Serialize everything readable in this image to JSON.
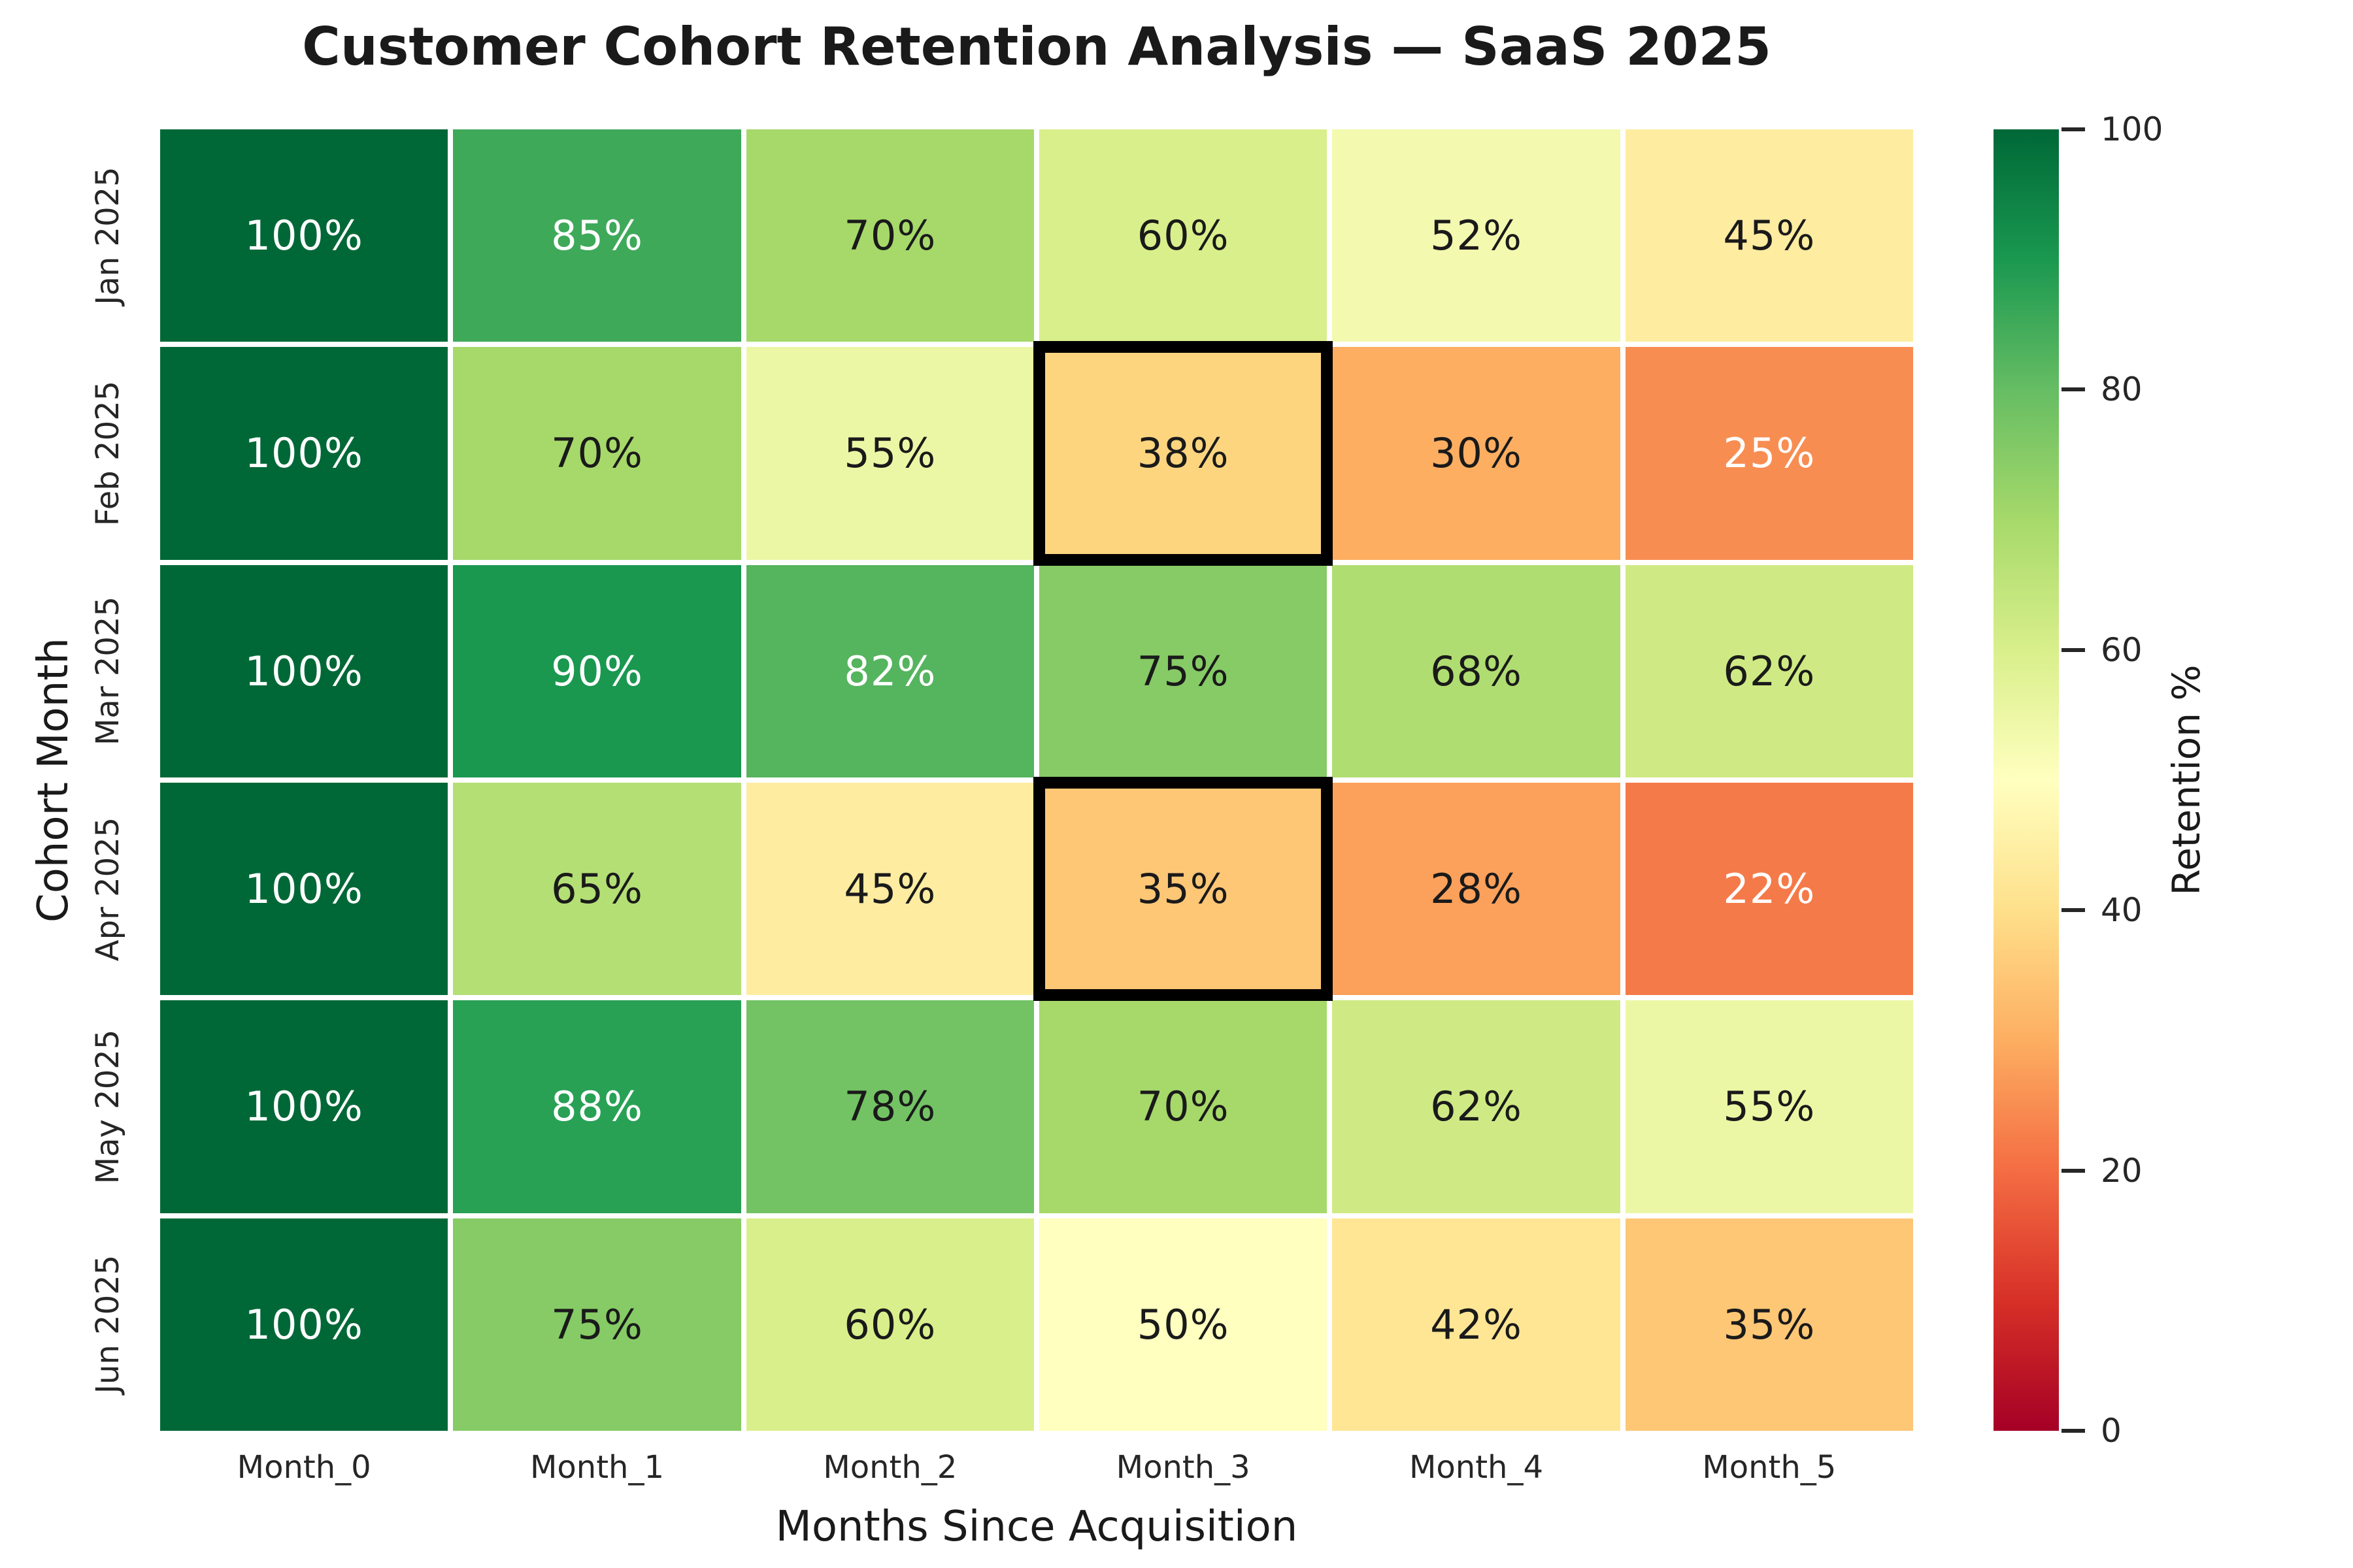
{
  "title": "Customer Cohort Retention Analysis — SaaS 2025",
  "chart_data": {
    "type": "heatmap",
    "title": "Customer Cohort Retention Analysis — SaaS 2025",
    "xlabel": "Months Since Acquisition",
    "ylabel": "Cohort Month",
    "unit": "%",
    "columns": [
      "Month_0",
      "Month_1",
      "Month_2",
      "Month_3",
      "Month_4",
      "Month_5"
    ],
    "rows": [
      "Jan 2025",
      "Feb 2025",
      "Mar 2025",
      "Apr 2025",
      "May 2025",
      "Jun 2025"
    ],
    "values": [
      [
        100,
        85,
        70,
        60,
        52,
        45
      ],
      [
        100,
        70,
        55,
        38,
        30,
        25
      ],
      [
        100,
        90,
        82,
        75,
        68,
        62
      ],
      [
        100,
        65,
        45,
        35,
        28,
        22
      ],
      [
        100,
        88,
        78,
        70,
        62,
        55
      ],
      [
        100,
        75,
        60,
        50,
        42,
        35
      ]
    ],
    "cell_labels": [
      [
        "100%",
        "85%",
        "70%",
        "60%",
        "52%",
        "45%"
      ],
      [
        "100%",
        "70%",
        "55%",
        "38%",
        "30%",
        "25%"
      ],
      [
        "100%",
        "90%",
        "82%",
        "75%",
        "68%",
        "62%"
      ],
      [
        "100%",
        "65%",
        "45%",
        "35%",
        "28%",
        "22%"
      ],
      [
        "100%",
        "88%",
        "78%",
        "70%",
        "62%",
        "55%"
      ],
      [
        "100%",
        "75%",
        "60%",
        "50%",
        "42%",
        "35%"
      ]
    ],
    "cell_colors": [
      [
        "#006837",
        "#3fa95a",
        "#a6d96a",
        "#d9ef8b",
        "#f3f9af",
        "#feeca1"
      ],
      [
        "#006837",
        "#a6d96a",
        "#ecf7a5",
        "#fdd57f",
        "#fdae61",
        "#f88d52"
      ],
      [
        "#006837",
        "#1a9850",
        "#55b45e",
        "#86cb66",
        "#b0dd71",
        "#cfea84"
      ],
      [
        "#006837",
        "#b4df75",
        "#feeca1",
        "#fdc776",
        "#fba15b",
        "#f57a49"
      ],
      [
        "#006837",
        "#28a155",
        "#73c364",
        "#a6d96a",
        "#cfea84",
        "#ecf7a5"
      ],
      [
        "#006837",
        "#86cb66",
        "#d9ef8b",
        "#ffffbf",
        "#fee695",
        "#fdc776"
      ]
    ],
    "cell_text_colors": [
      [
        "#ffffff",
        "#ffffff",
        "#1a1a1a",
        "#1a1a1a",
        "#1a1a1a",
        "#1a1a1a"
      ],
      [
        "#ffffff",
        "#1a1a1a",
        "#1a1a1a",
        "#1a1a1a",
        "#1a1a1a",
        "#ffffff"
      ],
      [
        "#ffffff",
        "#ffffff",
        "#ffffff",
        "#1a1a1a",
        "#1a1a1a",
        "#1a1a1a"
      ],
      [
        "#ffffff",
        "#1a1a1a",
        "#1a1a1a",
        "#1a1a1a",
        "#1a1a1a",
        "#ffffff"
      ],
      [
        "#ffffff",
        "#ffffff",
        "#1a1a1a",
        "#1a1a1a",
        "#1a1a1a",
        "#1a1a1a"
      ],
      [
        "#ffffff",
        "#1a1a1a",
        "#1a1a1a",
        "#1a1a1a",
        "#1a1a1a",
        "#1a1a1a"
      ]
    ],
    "highlighted_cells": [
      {
        "row": "Feb 2025",
        "col": "Month_3",
        "row_index": 1,
        "col_index": 3,
        "value": 38
      },
      {
        "row": "Apr 2025",
        "col": "Month_3",
        "row_index": 3,
        "col_index": 3,
        "value": 35
      }
    ],
    "highlight_border_color": "#000000",
    "colormap": "RdYlGn",
    "colormap_stops": [
      "#a50026",
      "#d73027",
      "#f46d43",
      "#fdae61",
      "#fee08b",
      "#ffffbf",
      "#d9ef8b",
      "#a6d96a",
      "#66bd63",
      "#1a9850",
      "#006837"
    ],
    "colorbar": {
      "label": "Retention %",
      "min": 0,
      "max": 100,
      "ticks": [
        0,
        20,
        40,
        60,
        80,
        100
      ]
    },
    "layout": {
      "grid_gap_color": "#ffffff",
      "background": "#ffffff",
      "legend_position": "right-colorbar",
      "grid": false
    }
  }
}
